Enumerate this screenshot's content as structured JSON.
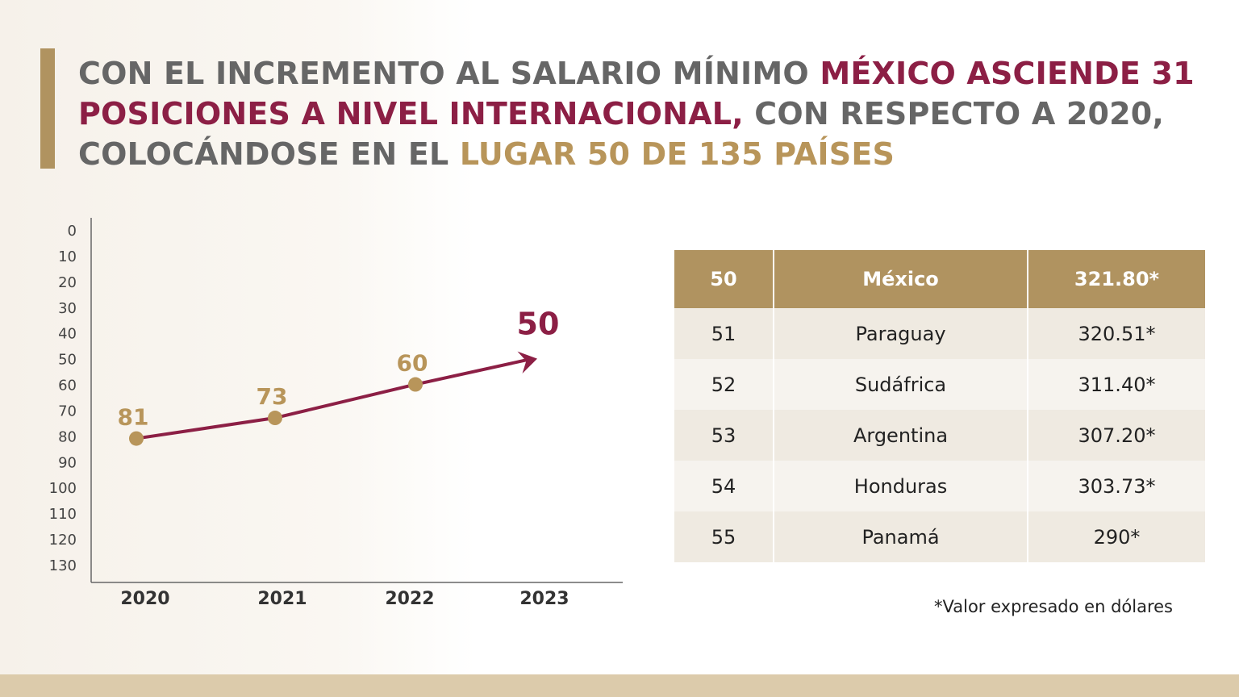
{
  "title": {
    "part1": "CON EL INCREMENTO AL SALARIO MÍNIMO ",
    "part2": "MÉXICO ASCIENDE 31 POSICIONES A NIVEL INTERNACIONAL,",
    "part3": " CON RESPECTO A 2020, COLOCÁNDOSE EN EL ",
    "part4": "LUGAR 50 DE 135 PAÍSES"
  },
  "colors": {
    "maroon": "#8c1f45",
    "gold": "#b8955a",
    "gold_dark": "#b09360"
  },
  "chart_data": {
    "type": "line",
    "categories": [
      "2020",
      "2021",
      "2022",
      "2023"
    ],
    "values": [
      81,
      73,
      60,
      50
    ],
    "value_labels": [
      "81",
      "73",
      "60",
      "50"
    ],
    "y_ticks": [
      "0",
      "10",
      "20",
      "30",
      "40",
      "50",
      "60",
      "70",
      "80",
      "90",
      "100",
      "110",
      "120",
      "130"
    ],
    "ylim": [
      0,
      130
    ],
    "y_inverted": true,
    "title": "",
    "xlabel": "",
    "ylabel": "",
    "grid": false
  },
  "table": {
    "header": [
      "50",
      "México",
      "321.80*"
    ],
    "rows": [
      [
        "51",
        "Paraguay",
        "320.51*"
      ],
      [
        "52",
        "Sudáfrica",
        "311.40*"
      ],
      [
        "53",
        "Argentina",
        "307.20*"
      ],
      [
        "54",
        "Honduras",
        "303.73*"
      ],
      [
        "55",
        "Panamá",
        "290*"
      ]
    ]
  },
  "note": "*Valor expresado en dólares"
}
